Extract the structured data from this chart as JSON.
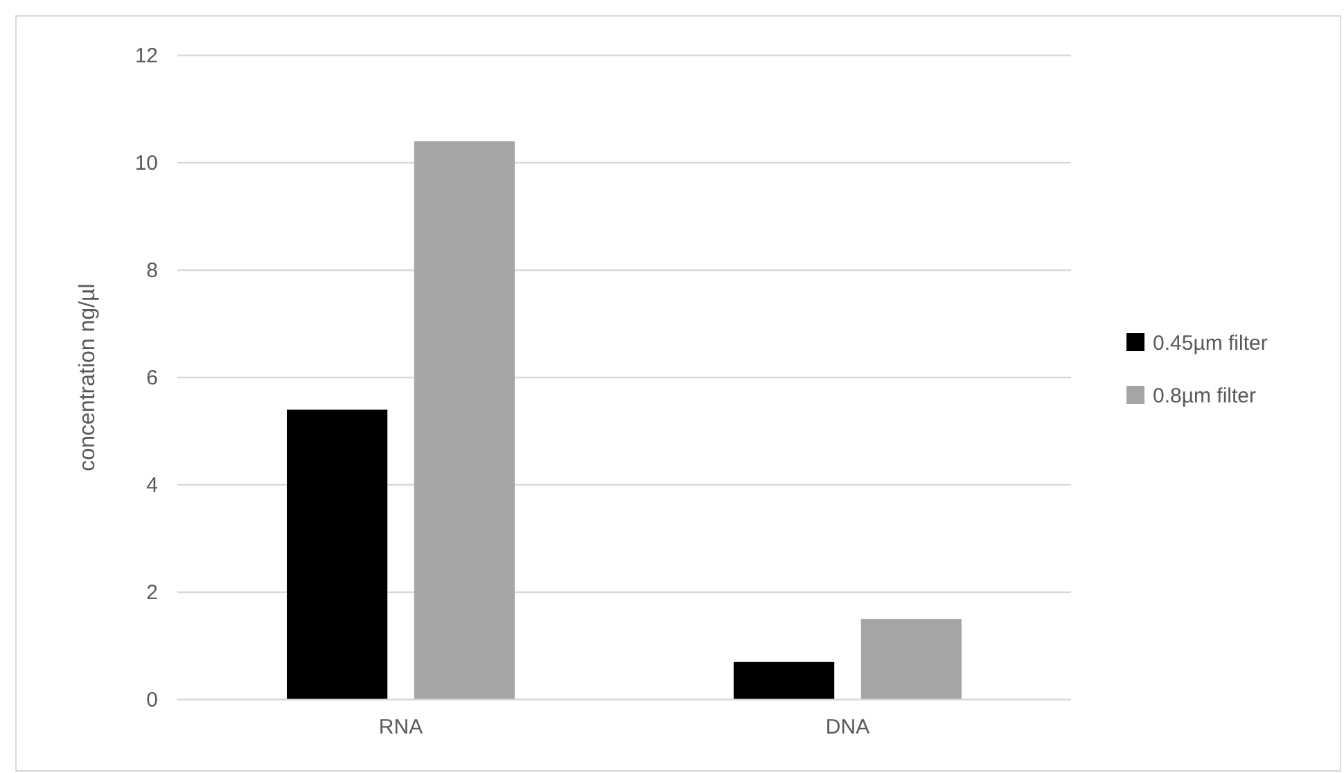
{
  "chart_data": {
    "type": "bar",
    "ylabel": "concentration ng/µl",
    "categories": [
      "RNA",
      "DNA"
    ],
    "series": [
      {
        "name": "0.45µm filter",
        "color": "#000000",
        "values": [
          5.4,
          0.7
        ]
      },
      {
        "name": "0.8µm filter",
        "color": "#a5a5a5",
        "values": [
          10.4,
          1.5
        ]
      }
    ],
    "ylim": [
      0,
      12
    ],
    "yticks": [
      0,
      2,
      4,
      6,
      8,
      10,
      12
    ],
    "grid": "y",
    "legend": "right"
  }
}
